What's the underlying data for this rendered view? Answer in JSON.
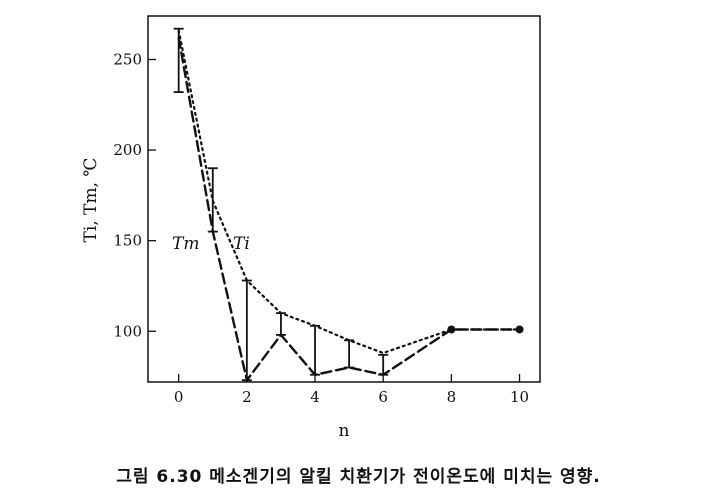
{
  "chart_data": {
    "type": "line",
    "xlabel": "n",
    "ylabel": "Ti, Tm, ℃",
    "xlim": [
      -0.9,
      10.6
    ],
    "ylim": [
      72,
      274
    ],
    "xticks": [
      0,
      2,
      4,
      6,
      8,
      10
    ],
    "yticks": [
      100,
      150,
      200,
      250
    ],
    "series": [
      {
        "name": "Tm",
        "style": "dashed",
        "x": [
          0,
          1,
          2,
          3,
          4,
          5,
          6,
          8,
          10
        ],
        "y": [
          262,
          155,
          73,
          98,
          76,
          80,
          76,
          101,
          101
        ]
      },
      {
        "name": "Ti",
        "style": "dotted",
        "x": [
          0,
          1,
          2,
          3,
          4,
          5,
          6,
          8,
          10
        ],
        "y": [
          266,
          172,
          128,
          110,
          103,
          95,
          88,
          101,
          101
        ]
      }
    ],
    "ranges": [
      {
        "x": 0,
        "low": 232,
        "high": 267
      },
      {
        "x": 1,
        "low": 155,
        "high": 190
      },
      {
        "x": 2,
        "low": 73,
        "high": 128
      },
      {
        "x": 3,
        "low": 98,
        "high": 110
      },
      {
        "x": 4,
        "low": 76,
        "high": 103
      },
      {
        "x": 5,
        "low": 80,
        "high": 95
      },
      {
        "x": 6,
        "low": 76,
        "high": 87
      }
    ],
    "markers": [
      {
        "x": 8,
        "y": 101
      },
      {
        "x": 10,
        "y": 101
      }
    ],
    "series_labels": {
      "tm": "Tm",
      "ti": "Ti"
    }
  },
  "caption": "그림 6.30  메소겐기의 알킬 치환기가 전이온도에 미치는 영향."
}
